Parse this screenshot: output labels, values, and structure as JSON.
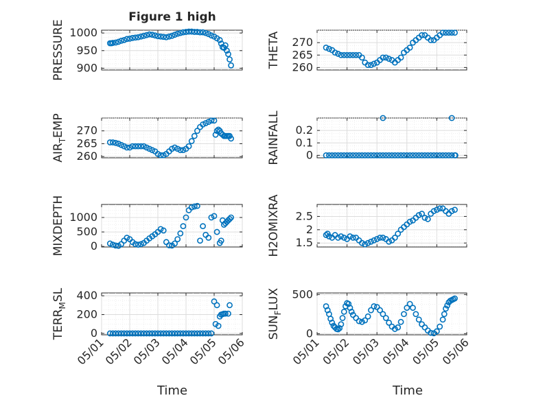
{
  "figure": {
    "title": "Figure 1 high",
    "xlabel": "Time",
    "marker_color": "#0072BD",
    "x_ticks": [
      "05/01",
      "05/02",
      "05/03",
      "05/04",
      "05/05",
      "05/06"
    ]
  },
  "chart_data": [
    {
      "type": "scatter",
      "ylabel": "PRESSURE",
      "xlim": [
        0,
        5
      ],
      "ylim": [
        895,
        1008
      ],
      "yticks": [
        900,
        950,
        1000
      ],
      "x": [
        0.3,
        0.35,
        0.4,
        0.5,
        0.6,
        0.7,
        0.8,
        0.9,
        1.0,
        1.1,
        1.2,
        1.3,
        1.4,
        1.5,
        1.6,
        1.7,
        1.8,
        1.9,
        2.0,
        2.1,
        2.2,
        2.3,
        2.4,
        2.5,
        2.6,
        2.7,
        2.8,
        2.9,
        3.0,
        3.1,
        3.2,
        3.3,
        3.4,
        3.5,
        3.6,
        3.7,
        3.8,
        3.9,
        4.0,
        4.1,
        4.2,
        4.25,
        4.3,
        4.35,
        4.4,
        4.45,
        4.5,
        4.55,
        4.6
      ],
      "y": [
        971,
        971,
        972,
        973,
        975,
        978,
        980,
        983,
        984,
        986,
        987,
        988,
        990,
        992,
        994,
        996,
        995,
        993,
        991,
        990,
        989,
        988,
        990,
        992,
        995,
        998,
        1000,
        1002,
        1003,
        1004,
        1004,
        1003,
        1003,
        1002,
        1002,
        1000,
        997,
        993,
        990,
        985,
        980,
        970,
        960,
        958,
        965,
        950,
        940,
        925,
        908
      ]
    },
    {
      "type": "scatter",
      "ylabel": "THETA",
      "xlim": [
        0,
        5
      ],
      "ylim": [
        259,
        275
      ],
      "yticks": [
        260,
        265,
        270
      ],
      "x": [
        0.3,
        0.4,
        0.5,
        0.6,
        0.7,
        0.8,
        0.9,
        1.0,
        1.1,
        1.2,
        1.3,
        1.4,
        1.5,
        1.6,
        1.7,
        1.8,
        1.9,
        2.0,
        2.1,
        2.2,
        2.3,
        2.4,
        2.5,
        2.6,
        2.7,
        2.8,
        2.9,
        3.0,
        3.1,
        3.2,
        3.3,
        3.4,
        3.5,
        3.6,
        3.7,
        3.8,
        3.9,
        4.0,
        4.1,
        4.2,
        4.3,
        4.4,
        4.5,
        4.6
      ],
      "y": [
        268,
        267.5,
        267,
        266,
        265.5,
        265,
        265,
        265,
        265,
        265,
        265,
        265,
        264,
        262,
        261,
        261,
        261.5,
        262,
        263,
        264,
        264,
        263.5,
        263,
        262,
        263,
        264,
        266,
        267,
        268,
        270,
        271,
        272,
        273,
        273,
        272,
        271,
        271,
        272,
        273,
        274,
        274,
        274,
        274,
        274
      ]
    },
    {
      "type": "scatter",
      "ylabel": "AIR_TEMP",
      "xlim": [
        0,
        5
      ],
      "ylim": [
        259.5,
        275
      ],
      "yticks": [
        260,
        265,
        270
      ],
      "x": [
        0.3,
        0.4,
        0.5,
        0.6,
        0.7,
        0.8,
        0.9,
        1.0,
        1.1,
        1.2,
        1.3,
        1.4,
        1.5,
        1.6,
        1.7,
        1.8,
        1.9,
        2.0,
        2.1,
        2.2,
        2.3,
        2.4,
        2.5,
        2.6,
        2.7,
        2.8,
        2.9,
        3.0,
        3.1,
        3.2,
        3.3,
        3.4,
        3.5,
        3.6,
        3.7,
        3.8,
        3.9,
        4.0,
        4.05,
        4.1,
        4.15,
        4.2,
        4.25,
        4.3,
        4.35,
        4.4,
        4.45,
        4.5,
        4.55,
        4.6
      ],
      "y": [
        265.5,
        265.5,
        265.3,
        265,
        264.5,
        264,
        263.5,
        263.5,
        264,
        264,
        264,
        264,
        264,
        263.5,
        263,
        262.5,
        262,
        261,
        260.5,
        260.5,
        261,
        262,
        263,
        263.5,
        263,
        262.5,
        262.5,
        263,
        264,
        266,
        268,
        270,
        271.5,
        272.5,
        273,
        273.5,
        274,
        274,
        268.5,
        270,
        270.5,
        270,
        269,
        268.5,
        268,
        268,
        268,
        268,
        268,
        267
      ]
    },
    {
      "type": "scatter",
      "ylabel": "RAINFALL",
      "xlim": [
        0,
        5
      ],
      "ylim": [
        -0.02,
        0.3
      ],
      "yticks": [
        0,
        0.1,
        0.2
      ],
      "x": [
        0.3,
        0.4,
        0.5,
        0.6,
        0.7,
        0.8,
        0.9,
        1.0,
        1.1,
        1.2,
        1.3,
        1.4,
        1.5,
        1.6,
        1.7,
        1.8,
        1.9,
        2.0,
        2.1,
        2.2,
        2.3,
        2.4,
        2.5,
        2.6,
        2.7,
        2.8,
        2.9,
        3.0,
        3.1,
        3.2,
        3.3,
        3.4,
        3.5,
        3.6,
        3.7,
        3.8,
        3.9,
        4.0,
        4.1,
        4.2,
        4.3,
        4.4,
        4.5,
        4.6,
        4.62,
        2.2,
        4.5
      ],
      "y": [
        0,
        0,
        0,
        0,
        0,
        0,
        0,
        0,
        0,
        0,
        0,
        0,
        0,
        0,
        0,
        0,
        0,
        0,
        0,
        0,
        0,
        0,
        0,
        0,
        0,
        0,
        0,
        0,
        0,
        0,
        0,
        0,
        0,
        0,
        0,
        0,
        0,
        0,
        0,
        0,
        0,
        0,
        0,
        0,
        0,
        0.3,
        0.3
      ]
    },
    {
      "type": "scatter",
      "ylabel": "MIXDEPTH",
      "xlim": [
        0,
        5
      ],
      "ylim": [
        -20,
        1450
      ],
      "yticks": [
        0,
        500,
        1000
      ],
      "x": [
        0.3,
        0.4,
        0.5,
        0.6,
        0.7,
        0.8,
        0.9,
        1.0,
        1.1,
        1.2,
        1.3,
        1.4,
        1.5,
        1.6,
        1.7,
        1.8,
        1.9,
        2.0,
        2.1,
        2.2,
        2.3,
        2.4,
        2.5,
        2.6,
        2.7,
        2.8,
        2.9,
        3.0,
        3.1,
        3.2,
        3.3,
        3.4,
        3.5,
        3.6,
        3.7,
        3.8,
        3.9,
        4.0,
        4.1,
        4.2,
        4.25,
        4.3,
        4.35,
        4.4,
        4.45,
        4.5,
        4.55,
        4.6
      ],
      "y": [
        100,
        60,
        30,
        20,
        80,
        200,
        300,
        250,
        150,
        80,
        60,
        80,
        120,
        200,
        280,
        350,
        420,
        500,
        600,
        550,
        150,
        40,
        30,
        100,
        250,
        450,
        700,
        1000,
        1250,
        1350,
        1380,
        1400,
        200,
        700,
        400,
        300,
        1000,
        1050,
        500,
        120,
        200,
        900,
        750,
        800,
        850,
        900,
        950,
        1000
      ]
    },
    {
      "type": "scatter",
      "ylabel": "H2OMIXRA",
      "xlim": [
        0,
        5
      ],
      "ylim": [
        1.35,
        2.95
      ],
      "yticks": [
        1.5,
        2,
        2.5
      ],
      "x": [
        0.3,
        0.35,
        0.4,
        0.5,
        0.6,
        0.7,
        0.8,
        0.9,
        1.0,
        1.1,
        1.2,
        1.3,
        1.4,
        1.5,
        1.6,
        1.7,
        1.8,
        1.9,
        2.0,
        2.1,
        2.2,
        2.3,
        2.4,
        2.5,
        2.6,
        2.7,
        2.8,
        2.9,
        3.0,
        3.1,
        3.2,
        3.3,
        3.4,
        3.5,
        3.6,
        3.7,
        3.8,
        3.9,
        4.0,
        4.1,
        4.2,
        4.3,
        4.4,
        4.5,
        4.6
      ],
      "y": [
        1.8,
        1.85,
        1.75,
        1.7,
        1.8,
        1.7,
        1.75,
        1.7,
        1.65,
        1.75,
        1.7,
        1.7,
        1.6,
        1.5,
        1.45,
        1.5,
        1.55,
        1.6,
        1.65,
        1.7,
        1.7,
        1.65,
        1.55,
        1.6,
        1.7,
        1.85,
        2.0,
        2.1,
        2.2,
        2.3,
        2.35,
        2.45,
        2.55,
        2.6,
        2.45,
        2.4,
        2.6,
        2.7,
        2.75,
        2.8,
        2.8,
        2.7,
        2.6,
        2.7,
        2.75
      ]
    },
    {
      "type": "scatter",
      "ylabel": "TERR_MSL",
      "xlim": [
        0,
        5
      ],
      "ylim": [
        -15,
        430
      ],
      "yticks": [
        0,
        200,
        400
      ],
      "x": [
        0.3,
        0.4,
        0.5,
        0.6,
        0.7,
        0.8,
        0.9,
        1.0,
        1.1,
        1.2,
        1.3,
        1.4,
        1.5,
        1.6,
        1.7,
        1.8,
        1.9,
        2.0,
        2.1,
        2.2,
        2.3,
        2.4,
        2.5,
        2.6,
        2.7,
        2.8,
        2.9,
        3.0,
        3.1,
        3.2,
        3.3,
        3.4,
        3.5,
        3.6,
        3.7,
        3.8,
        3.9,
        4.0,
        4.05,
        4.1,
        4.15,
        4.2,
        4.25,
        4.3,
        4.35,
        4.4,
        4.5,
        4.55
      ],
      "y": [
        0,
        0,
        0,
        0,
        0,
        0,
        0,
        0,
        0,
        0,
        0,
        0,
        0,
        0,
        0,
        0,
        0,
        0,
        0,
        0,
        0,
        0,
        0,
        0,
        0,
        0,
        0,
        0,
        0,
        0,
        0,
        0,
        0,
        0,
        0,
        0,
        0,
        340,
        100,
        300,
        80,
        180,
        200,
        205,
        210,
        210,
        210,
        300
      ]
    },
    {
      "type": "scatter",
      "ylabel": "SUN_FLUX",
      "xlim": [
        0,
        5
      ],
      "ylim": [
        -15,
        520
      ],
      "yticks": [
        0,
        500
      ],
      "x": [
        0.3,
        0.35,
        0.4,
        0.45,
        0.5,
        0.55,
        0.6,
        0.65,
        0.7,
        0.75,
        0.8,
        0.85,
        0.9,
        0.95,
        1.0,
        1.05,
        1.1,
        1.15,
        1.2,
        1.3,
        1.4,
        1.5,
        1.6,
        1.7,
        1.8,
        1.9,
        2.0,
        2.1,
        2.2,
        2.3,
        2.4,
        2.5,
        2.6,
        2.7,
        2.8,
        2.9,
        3.0,
        3.1,
        3.2,
        3.3,
        3.4,
        3.5,
        3.6,
        3.7,
        3.8,
        3.9,
        4.0,
        4.1,
        4.2,
        4.25,
        4.3,
        4.35,
        4.4,
        4.45,
        4.5,
        4.55,
        4.6
      ],
      "y": [
        350,
        300,
        250,
        190,
        140,
        100,
        80,
        60,
        55,
        70,
        120,
        200,
        280,
        350,
        390,
        380,
        330,
        280,
        240,
        200,
        160,
        150,
        170,
        220,
        300,
        350,
        340,
        300,
        250,
        200,
        140,
        90,
        60,
        80,
        150,
        250,
        330,
        380,
        330,
        250,
        180,
        120,
        80,
        40,
        10,
        5,
        30,
        90,
        180,
        250,
        320,
        360,
        400,
        420,
        430,
        440,
        450
      ]
    }
  ]
}
